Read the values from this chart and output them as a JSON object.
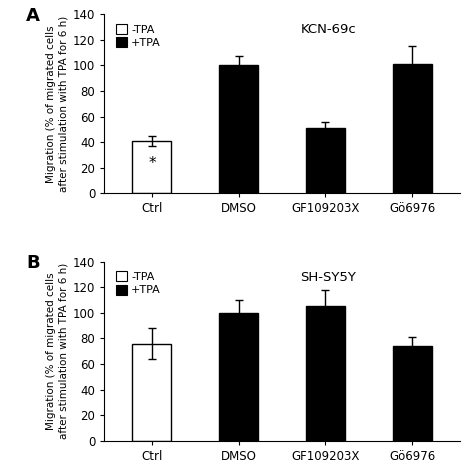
{
  "panel_A": {
    "title": "KCN-69c",
    "label": "A",
    "categories": [
      "Ctrl",
      "DMSO",
      "GF109203X",
      "Gö6976"
    ],
    "values": [
      41,
      100,
      51,
      101
    ],
    "errors": [
      4,
      7,
      5,
      14
    ],
    "colors": [
      "white",
      "black",
      "black",
      "black"
    ],
    "edgecolors": [
      "black",
      "black",
      "black",
      "black"
    ],
    "star": [
      true,
      false,
      true,
      false
    ]
  },
  "panel_B": {
    "title": "SH-SY5Y",
    "label": "B",
    "categories": [
      "Ctrl",
      "DMSO",
      "GF109203X",
      "Gö6976"
    ],
    "values": [
      76,
      100,
      105,
      74
    ],
    "errors": [
      12,
      10,
      13,
      7
    ],
    "colors": [
      "white",
      "black",
      "black",
      "black"
    ],
    "edgecolors": [
      "black",
      "black",
      "black",
      "black"
    ],
    "star": [
      false,
      false,
      false,
      false
    ]
  },
  "ylabel": "Migration (% of migrated cells\nafter stimulation with TPA for 6 h)",
  "ylim": [
    0,
    140
  ],
  "yticks": [
    0,
    20,
    40,
    60,
    80,
    100,
    120,
    140
  ],
  "legend_labels": [
    "-TPA",
    "+TPA"
  ],
  "bar_width": 0.45,
  "background_color": "#ffffff",
  "fig_width": 4.74,
  "fig_height": 4.74
}
